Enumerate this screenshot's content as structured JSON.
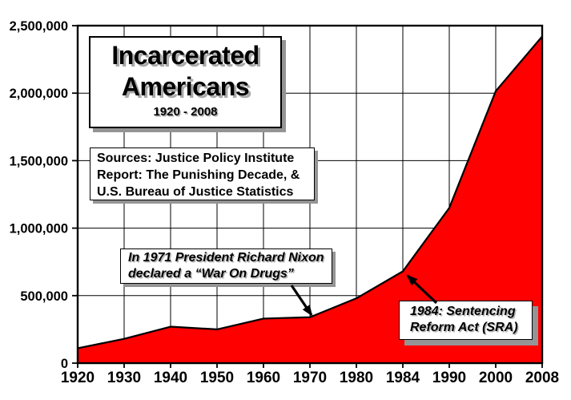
{
  "chart_data": {
    "type": "area",
    "title": "Incarcerated Americans",
    "title_lines": [
      "Incarcerated",
      "Americans"
    ],
    "subtitle": "1920 - 2008",
    "categories": [
      "1920",
      "1930",
      "1940",
      "1950",
      "1960",
      "1970",
      "1980",
      "1984",
      "1990",
      "2000",
      "2008"
    ],
    "values": [
      110000,
      180000,
      270000,
      250000,
      330000,
      340000,
      480000,
      680000,
      1150000,
      2015000,
      2420000
    ],
    "ylabel": "",
    "xlabel": "",
    "ylim": [
      0,
      2500000
    ],
    "ytick_interval": 500000,
    "ytick_labels": [
      "0",
      "500,000",
      "1,000,000",
      "1,500,000",
      "2,000,000",
      "2,500,000"
    ],
    "grid": true,
    "legend_position": "none",
    "area_color": "#fe0000",
    "edge_color": "#000000",
    "grid_color": "#000000"
  },
  "annotations": {
    "sources": {
      "line1": "Sources: Justice Policy Institute",
      "line2": "Report: The Punishing Decade, &",
      "line3": "U.S. Bureau of Justice Statistics"
    },
    "nixon": {
      "line1": "In 1971 President Richard Nixon",
      "line2": "declared a “War On Drugs”"
    },
    "sra": {
      "line1": "1984: Sentencing",
      "line2": "Reform Act (SRA)"
    }
  }
}
